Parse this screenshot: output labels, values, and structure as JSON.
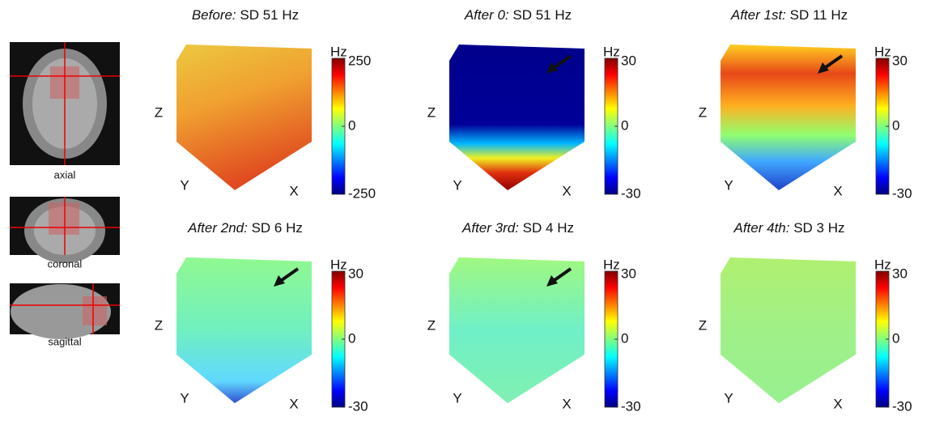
{
  "brain_views": [
    {
      "label": "axial"
    },
    {
      "label": "coronal"
    },
    {
      "label": "sagittal"
    }
  ],
  "panels": [
    {
      "title_italic": "Before:",
      "title_rest": "SD 51 Hz",
      "arrow": false,
      "axes": {
        "z": "Z",
        "y": "Y",
        "x": "X"
      },
      "colorbar": {
        "unit": "Hz",
        "ticks": [
          250,
          0,
          -250
        ]
      }
    },
    {
      "title_italic": "After 0:",
      "title_rest": "SD 51 Hz",
      "arrow": true,
      "axes": {
        "z": "Z",
        "y": "Y",
        "x": "X"
      },
      "colorbar": {
        "unit": "Hz",
        "ticks": [
          30,
          0,
          -30
        ]
      }
    },
    {
      "title_italic": "After 1st:",
      "title_rest": "SD 11 Hz",
      "arrow": true,
      "axes": {
        "z": "Z",
        "y": "Y",
        "x": "X"
      },
      "colorbar": {
        "unit": "Hz",
        "ticks": [
          30,
          0,
          -30
        ]
      }
    },
    {
      "title_italic": "After 2nd:",
      "title_rest": "SD 6 Hz",
      "arrow": true,
      "axes": {
        "z": "Z",
        "y": "Y",
        "x": "X"
      },
      "colorbar": {
        "unit": "Hz",
        "ticks": [
          30,
          0,
          -30
        ]
      }
    },
    {
      "title_italic": "After 3rd:",
      "title_rest": "SD 4 Hz",
      "arrow": true,
      "axes": {
        "z": "Z",
        "y": "Y",
        "x": "X"
      },
      "colorbar": {
        "unit": "Hz",
        "ticks": [
          30,
          0,
          -30
        ]
      }
    },
    {
      "title_italic": "After 4th:",
      "title_rest": "SD 3 Hz",
      "arrow": false,
      "axes": {
        "z": "Z",
        "y": "Y",
        "x": "X"
      },
      "colorbar": {
        "unit": "Hz",
        "ticks": [
          30,
          0,
          -30
        ]
      }
    }
  ]
}
